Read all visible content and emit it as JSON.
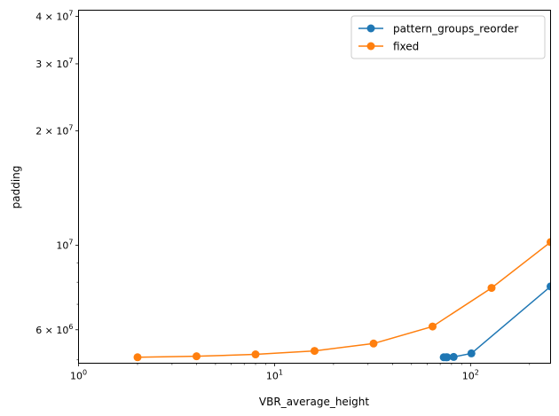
{
  "chart_data": {
    "type": "line",
    "title": "",
    "xlabel": "VBR_average_height",
    "ylabel": "padding",
    "x_scale": "log",
    "y_scale": "log",
    "xlim": [
      1,
      256
    ],
    "ylim": [
      4900000,
      41500000
    ],
    "x_ticks": [
      {
        "value": 1,
        "base": "10",
        "exp": "0"
      },
      {
        "value": 10,
        "base": "10",
        "exp": "1"
      },
      {
        "value": 100,
        "base": "10",
        "exp": "2"
      }
    ],
    "y_ticks": [
      {
        "value": 6000000,
        "mant": "6",
        "exp": "6"
      },
      {
        "value": 10000000,
        "mant": "",
        "exp": "7"
      },
      {
        "value": 20000000,
        "mant": "2",
        "exp": "7"
      },
      {
        "value": 30000000,
        "mant": "3",
        "exp": "7"
      },
      {
        "value": 40000000,
        "mant": "4",
        "exp": "7"
      }
    ],
    "grid": false,
    "legend_position": "top-right",
    "series": [
      {
        "name": "pattern_groups_reorder",
        "color": "#1f77b4",
        "points": [
          [
            73,
            5080000
          ],
          [
            75,
            5080000
          ],
          [
            76,
            5080000
          ],
          [
            82,
            5090000
          ],
          [
            101,
            5200000
          ],
          [
            256,
            7800000
          ]
        ]
      },
      {
        "name": "fixed",
        "color": "#ff7f0e",
        "points": [
          [
            2,
            5080000
          ],
          [
            4,
            5110000
          ],
          [
            8,
            5170000
          ],
          [
            16,
            5280000
          ],
          [
            32,
            5520000
          ],
          [
            64,
            6120000
          ],
          [
            128,
            7730000
          ],
          [
            256,
            10200000
          ]
        ]
      }
    ]
  }
}
